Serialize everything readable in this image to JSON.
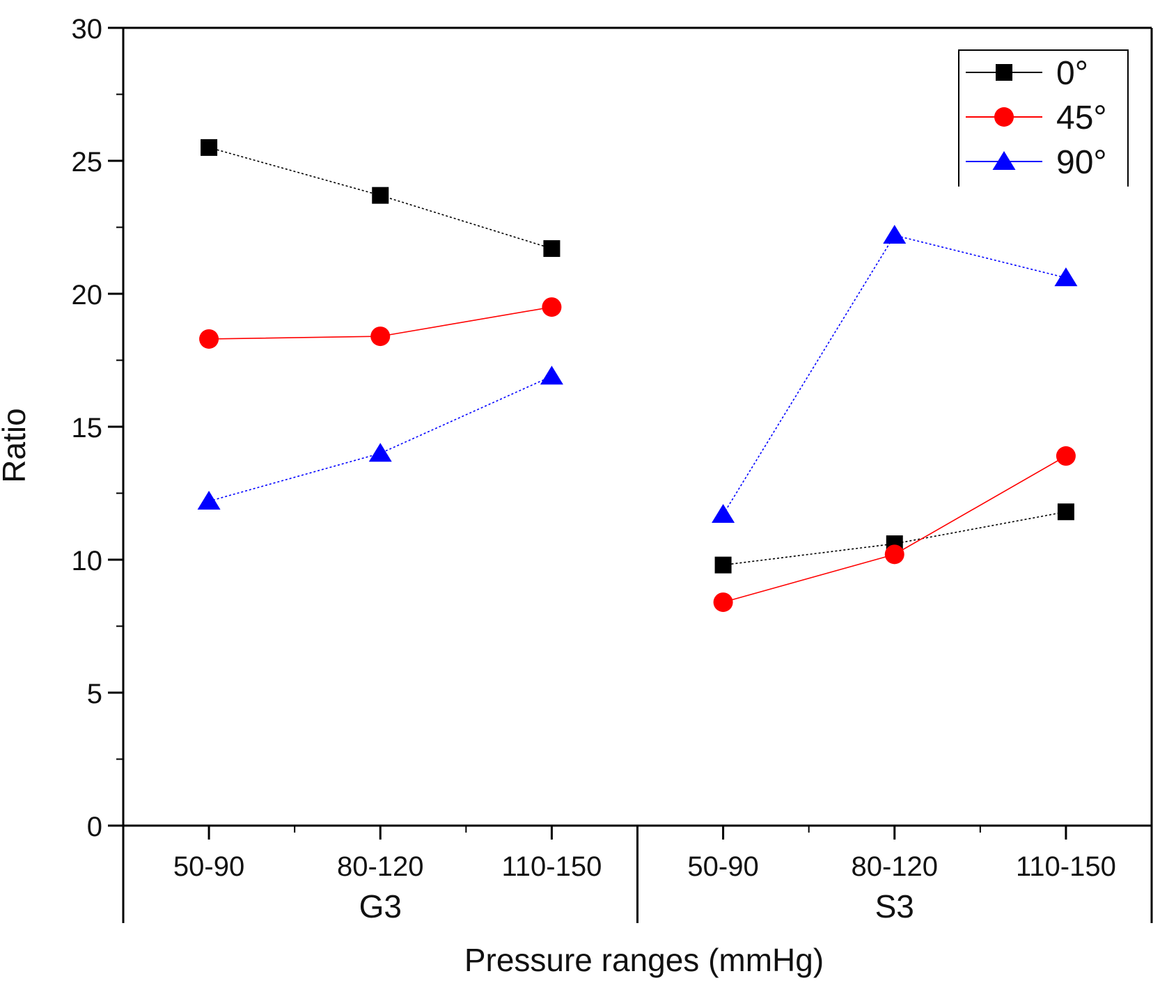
{
  "chart_data": {
    "type": "line",
    "xlabel": "Pressure ranges (mmHg)",
    "ylabel": "Ratio",
    "ylim": [
      0,
      30
    ],
    "yticks": [
      "0",
      "5",
      "10",
      "15",
      "20",
      "25",
      "30"
    ],
    "groups": [
      {
        "label": "G3",
        "categories": [
          "50-90",
          "80-120",
          "110-150"
        ]
      },
      {
        "label": "S3",
        "categories": [
          "50-90",
          "80-120",
          "110-150"
        ]
      }
    ],
    "legend_position": "top-right",
    "series": [
      {
        "name": "0°",
        "marker": "square",
        "color": "#000000",
        "line_style": "dotted",
        "G3": [
          25.5,
          23.7,
          21.7
        ],
        "S3": [
          9.8,
          10.6,
          11.8
        ]
      },
      {
        "name": "45°",
        "marker": "circle",
        "color": "#ff0000",
        "line_style": "solid",
        "G3": [
          18.3,
          18.4,
          19.5
        ],
        "S3": [
          8.4,
          10.2,
          13.9
        ]
      },
      {
        "name": "90°",
        "marker": "triangle",
        "color": "#0000ff",
        "line_style": "dotted",
        "G3": [
          12.2,
          14.0,
          16.9
        ],
        "S3": [
          11.7,
          22.2,
          20.6
        ]
      }
    ]
  }
}
